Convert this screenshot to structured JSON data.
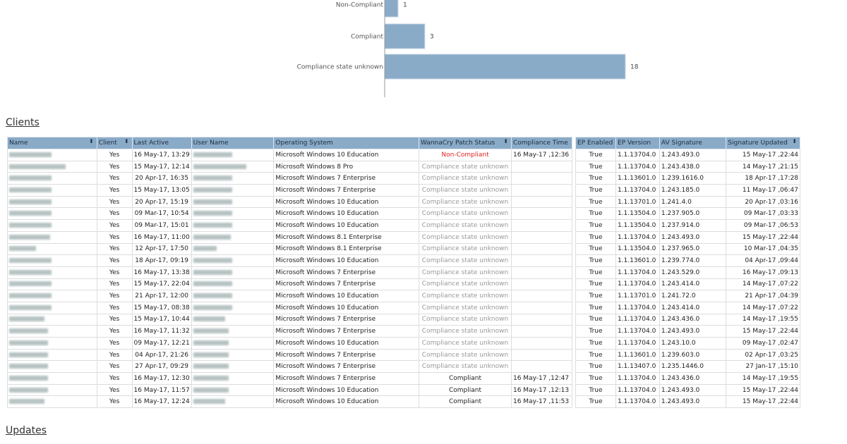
{
  "chart_data": {
    "type": "bar",
    "orientation": "horizontal",
    "categories": [
      "Non-Compliant",
      "Compliant",
      "Compliance state unknown"
    ],
    "values": [
      1,
      3,
      18
    ],
    "bar_color": "#8aabc8"
  },
  "sections": {
    "clients": "Clients",
    "updates": "Updates"
  },
  "clients_table": {
    "headers": [
      "Name",
      "Client",
      "Last Active",
      "User Name",
      "Operating System",
      "WannaCry Patch Status",
      "Compliance Time"
    ],
    "sortable_icon": "sort-updown-icon",
    "rows": [
      [
        "Yes",
        "16 May-17, 13:29",
        "Microsoft Windows 10 Education",
        "Non-Compliant",
        "16 May-17 ,12:36"
      ],
      [
        "Yes",
        "15 May-17, 12:14",
        "Microsoft Windows 8 Pro",
        "Compliance state unknown",
        ""
      ],
      [
        "Yes",
        "20 Apr-17, 16:35",
        "Microsoft Windows 7 Enterprise",
        "Compliance state unknown",
        ""
      ],
      [
        "Yes",
        "15 May-17, 13:05",
        "Microsoft Windows 7 Enterprise",
        "Compliance state unknown",
        ""
      ],
      [
        "Yes",
        "20 Apr-17, 15:19",
        "Microsoft Windows 10 Education",
        "Compliance state unknown",
        ""
      ],
      [
        "Yes",
        "09 Mar-17, 10:54",
        "Microsoft Windows 10 Education",
        "Compliance state unknown",
        ""
      ],
      [
        "Yes",
        "09 Mar-17, 15:01",
        "Microsoft Windows 10 Education",
        "Compliance state unknown",
        ""
      ],
      [
        "Yes",
        "16 May-17, 11:00",
        "Microsoft Windows 8.1 Enterprise",
        "Compliance state unknown",
        ""
      ],
      [
        "Yes",
        "12 Apr-17, 17:50",
        "Microsoft Windows 8.1 Enterprise",
        "Compliance state unknown",
        ""
      ],
      [
        "Yes",
        "18 Apr-17, 09:19",
        "Microsoft Windows 10 Education",
        "Compliance state unknown",
        ""
      ],
      [
        "Yes",
        "16 May-17, 13:38",
        "Microsoft Windows 7 Enterprise",
        "Compliance state unknown",
        ""
      ],
      [
        "Yes",
        "15 May-17, 22:04",
        "Microsoft Windows 7 Enterprise",
        "Compliance state unknown",
        ""
      ],
      [
        "Yes",
        "21 Apr-17, 12:00",
        "Microsoft Windows 10 Education",
        "Compliance state unknown",
        ""
      ],
      [
        "Yes",
        "15 May-17, 08:38",
        "Microsoft Windows 10 Education",
        "Compliance state unknown",
        ""
      ],
      [
        "Yes",
        "15 May-17, 10:44",
        "Microsoft Windows 7 Enterprise",
        "Compliance state unknown",
        ""
      ],
      [
        "Yes",
        "16 May-17, 11:32",
        "Microsoft Windows 7 Enterprise",
        "Compliance state unknown",
        ""
      ],
      [
        "Yes",
        "09 May-17, 12:21",
        "Microsoft Windows 10 Education",
        "Compliance state unknown",
        ""
      ],
      [
        "Yes",
        "04 Apr-17, 21:26",
        "Microsoft Windows 7 Enterprise",
        "Compliance state unknown",
        ""
      ],
      [
        "Yes",
        "27 Apr-17, 09:29",
        "Microsoft Windows 7 Enterprise",
        "Compliance state unknown",
        ""
      ],
      [
        "Yes",
        "16 May-17, 12:30",
        "Microsoft Windows 7 Enterprise",
        "Compliant",
        "16 May-17 ,12:47"
      ],
      [
        "Yes",
        "16 May-17, 11:57",
        "Microsoft Windows 10 Education",
        "Compliant",
        "16 May-17 ,12:13"
      ],
      [
        "Yes",
        "16 May-17, 12:24",
        "Microsoft Windows 10 Education",
        "Compliant",
        "16 May-17 ,11:53"
      ]
    ]
  },
  "ep_table": {
    "headers": [
      "EP Enabled",
      "EP Version",
      "AV Signature",
      "Signature Updated"
    ],
    "rows": [
      [
        "True",
        "1.1.13704.0",
        "1.243.493.0",
        "15 May-17 ,22:44"
      ],
      [
        "True",
        "1.1.13704.0",
        "1.243.438.0",
        "14 May-17 ,21:15"
      ],
      [
        "True",
        "1.1.13601.0",
        "1.239.1616.0",
        "18 Apr-17 ,17:28"
      ],
      [
        "True",
        "1.1.13704.0",
        "1.243.185.0",
        "11 May-17 ,06:47"
      ],
      [
        "True",
        "1.1.13701.0",
        "1.241.4.0",
        "20 Apr-17 ,03:16"
      ],
      [
        "True",
        "1.1.13504.0",
        "1.237.905.0",
        "09 Mar-17 ,03:33"
      ],
      [
        "True",
        "1.1.13504.0",
        "1.237.914.0",
        "09 Mar-17 ,06:53"
      ],
      [
        "True",
        "1.1.13704.0",
        "1.243.493.0",
        "15 May-17 ,22:44"
      ],
      [
        "True",
        "1.1.13504.0",
        "1.237.965.0",
        "10 Mar-17 ,04:35"
      ],
      [
        "True",
        "1.1.13601.0",
        "1.239.774.0",
        "04 Apr-17 ,09:44"
      ],
      [
        "True",
        "1.1.13704.0",
        "1.243.529.0",
        "16 May-17 ,09:13"
      ],
      [
        "True",
        "1.1.13704.0",
        "1.243.414.0",
        "14 May-17 ,07:22"
      ],
      [
        "True",
        "1.1.13701.0",
        "1.241.72.0",
        "21 Apr-17 ,04:39"
      ],
      [
        "True",
        "1.1.13704.0",
        "1.243.414.0",
        "14 May-17 ,07:22"
      ],
      [
        "True",
        "1.1.13704.0",
        "1.243.436.0",
        "14 May-17 ,19:55"
      ],
      [
        "True",
        "1.1.13704.0",
        "1.243.493.0",
        "15 May-17 ,22:44"
      ],
      [
        "True",
        "1.1.13704.0",
        "1.243.10.0",
        "09 May-17 ,02:47"
      ],
      [
        "True",
        "1.1.13601.0",
        "1.239.603.0",
        "02 Apr-17 ,03:25"
      ],
      [
        "True",
        "1.1.13407.0",
        "1.235.1446.0",
        "27 Jan-17 ,15:10"
      ],
      [
        "True",
        "1.1.13704.0",
        "1.243.436.0",
        "14 May-17 ,19:55"
      ],
      [
        "True",
        "1.1.13704.0",
        "1.243.493.0",
        "15 May-17 ,22:44"
      ],
      [
        "True",
        "1.1.13704.0",
        "1.243.493.0",
        "15 May-17 ,22:44"
      ]
    ]
  }
}
